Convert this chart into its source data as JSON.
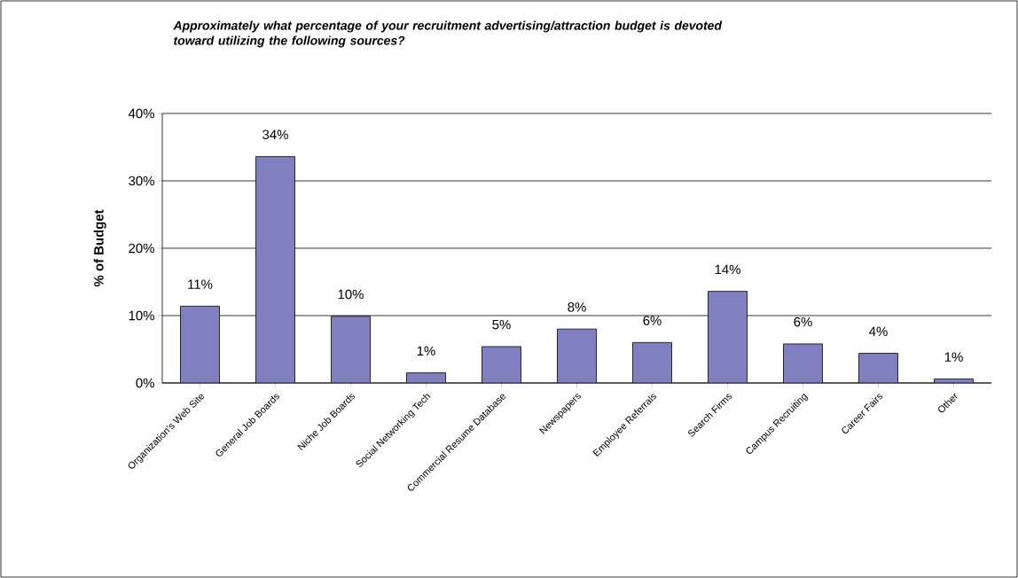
{
  "chart_data": {
    "type": "bar",
    "title": "Approximately what percentage of your recruitment advertising/attraction budget is devoted toward utilizing the following sources?",
    "ylabel": "% of Budget",
    "categories": [
      "Organization's Web Site",
      "General Job Boards",
      "Niche Job Boards",
      "Social Networking Tech",
      "Commercial Resume Database",
      "Newspapers",
      "Employee Referrals",
      "Search Firms",
      "Campus Recruiting",
      "Career Fairs",
      "Other"
    ],
    "values": [
      11.4,
      33.6,
      9.9,
      1.5,
      5.4,
      8.0,
      6.0,
      13.6,
      5.8,
      4.4,
      0.6
    ],
    "value_labels": [
      "11%",
      "34%",
      "10%",
      "1%",
      "5%",
      "8%",
      "6%",
      "14%",
      "6%",
      "4%",
      "1%"
    ],
    "color": "#8080c0",
    "ylim": [
      0,
      40
    ],
    "yticks": [
      {
        "value": 0,
        "label": "0%"
      },
      {
        "value": 10,
        "label": "10%"
      },
      {
        "value": 20,
        "label": "20%"
      },
      {
        "value": 30,
        "label": "30%"
      },
      {
        "value": 40,
        "label": "40%"
      }
    ],
    "grid": "y"
  }
}
